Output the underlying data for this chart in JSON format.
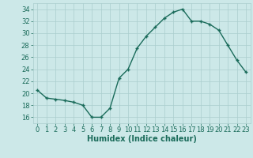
{
  "x": [
    0,
    1,
    2,
    3,
    4,
    5,
    6,
    7,
    8,
    9,
    10,
    11,
    12,
    13,
    14,
    15,
    16,
    17,
    18,
    19,
    20,
    21,
    22,
    23
  ],
  "y": [
    20.5,
    19.2,
    19.0,
    18.8,
    18.5,
    18.0,
    16.0,
    16.0,
    17.5,
    22.5,
    24.0,
    27.5,
    29.5,
    31.0,
    32.5,
    33.5,
    34.0,
    32.0,
    32.0,
    31.5,
    30.5,
    28.0,
    25.5,
    23.5
  ],
  "xlabel": "Humidex (Indice chaleur)",
  "xlim": [
    -0.5,
    23.5
  ],
  "ylim": [
    15,
    35
  ],
  "yticks": [
    16,
    18,
    20,
    22,
    24,
    26,
    28,
    30,
    32,
    34
  ],
  "xticks": [
    0,
    1,
    2,
    3,
    4,
    5,
    6,
    7,
    8,
    9,
    10,
    11,
    12,
    13,
    14,
    15,
    16,
    17,
    18,
    19,
    20,
    21,
    22,
    23
  ],
  "line_color": "#1a6b5a",
  "marker_color": "#1a6b5a",
  "bg_color": "#cce8e8",
  "grid_color": "#aacece",
  "font_color": "#1a6b5a",
  "xlabel_fontsize": 7,
  "tick_fontsize": 6
}
